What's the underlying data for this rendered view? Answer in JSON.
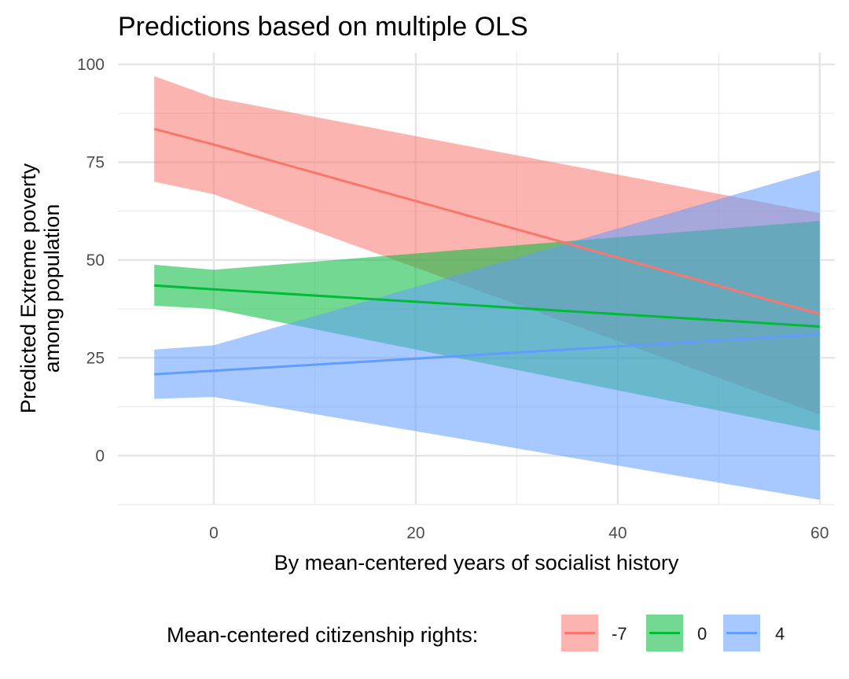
{
  "chart_data": {
    "type": "line",
    "title": "Predictions based on multiple OLS",
    "xlabel": "By mean-centered years of socialist history",
    "ylabel_lines": [
      "Predicted Extreme poverty",
      "among population"
    ],
    "xlim": [
      -9.5,
      61.5
    ],
    "ylim": [
      -12.5,
      103
    ],
    "x_ticks": [
      0,
      20,
      40,
      60
    ],
    "y_ticks": [
      0,
      25,
      50,
      75,
      100
    ],
    "grid": true,
    "legend": {
      "title": "Mean-centered citizenship rights:",
      "position": "bottom"
    },
    "series": [
      {
        "name": "-7",
        "color": "#F8766D",
        "line": {
          "x": [
            -5.9,
            0,
            60
          ],
          "y": [
            83.5,
            79.5,
            36.2
          ]
        },
        "ribbon": {
          "x": [
            -5.9,
            0,
            60
          ],
          "upper": [
            97.0,
            91.5,
            62.0
          ],
          "lower": [
            70.0,
            66.8,
            10.5
          ]
        }
      },
      {
        "name": "0",
        "color": "#00BA38",
        "line": {
          "x": [
            -5.9,
            0,
            60
          ],
          "y": [
            43.5,
            42.5,
            33.0
          ]
        },
        "ribbon": {
          "x": [
            -5.9,
            0,
            60
          ],
          "upper": [
            48.8,
            47.5,
            60.0
          ],
          "lower": [
            38.3,
            37.5,
            6.3
          ]
        }
      },
      {
        "name": "4",
        "color": "#619CFF",
        "line": {
          "x": [
            -5.9,
            0,
            60
          ],
          "y": [
            20.8,
            21.7,
            31.0
          ]
        },
        "ribbon": {
          "x": [
            -5.9,
            0,
            60
          ],
          "upper": [
            27.1,
            28.2,
            73.0
          ],
          "lower": [
            14.5,
            15.0,
            -11.3
          ]
        }
      }
    ]
  }
}
